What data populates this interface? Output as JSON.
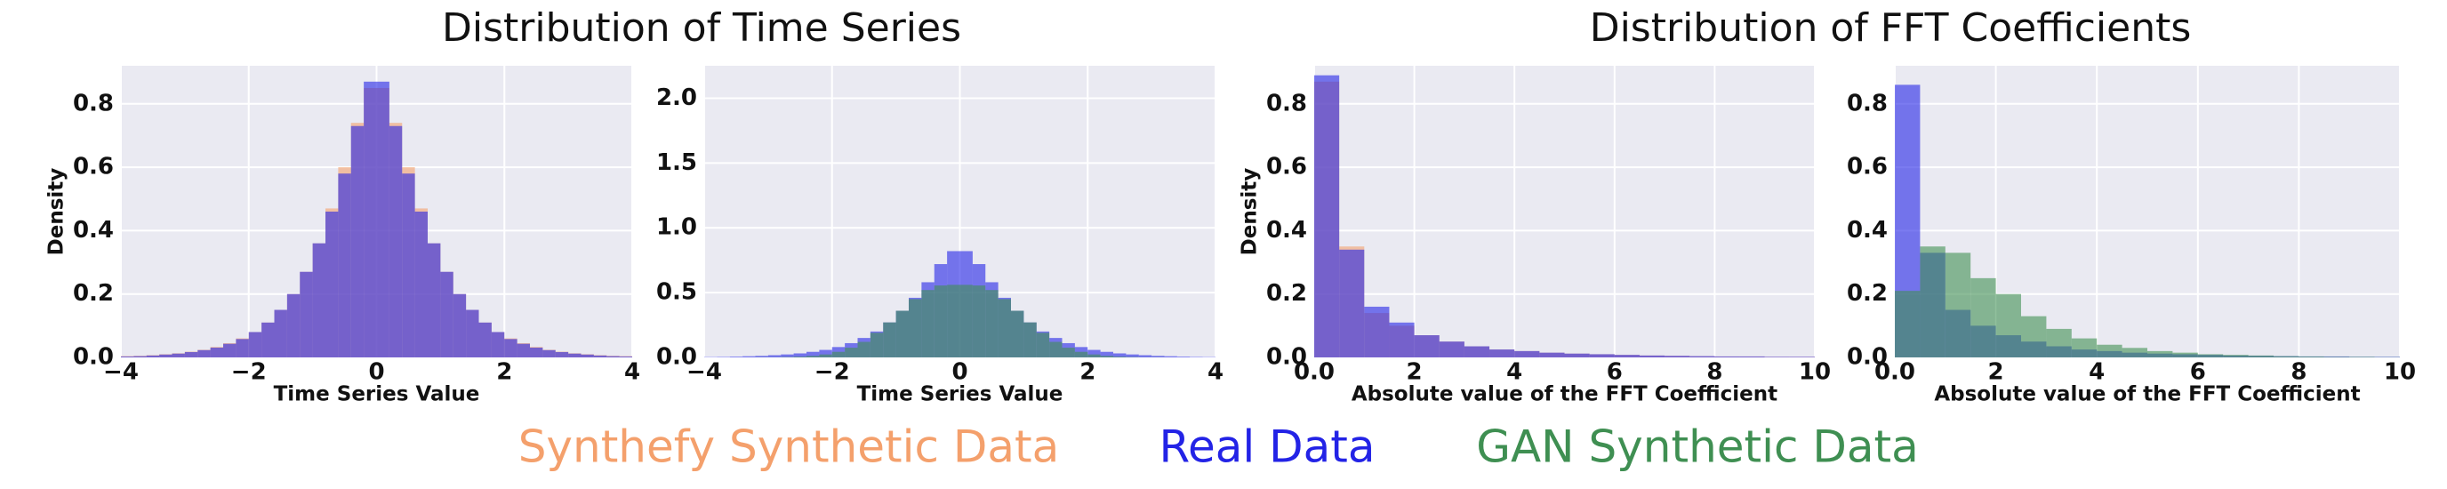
{
  "titles": [
    "Distribution of Time Series",
    "Distribution of FFT Coefficients"
  ],
  "chart_data": [
    {
      "type": "histogram",
      "xlabel": "Time Series Value",
      "ylabel": "Density",
      "grid": true,
      "bins": [
        -4,
        -3.8,
        -3.6,
        -3.4,
        -3.2,
        -3,
        -2.8,
        -2.6,
        -2.4,
        -2.2,
        -2,
        -1.8,
        -1.6,
        -1.4,
        -1.2,
        -1,
        -0.8,
        -0.6,
        -0.4,
        -0.2,
        0,
        0.2,
        0.4,
        0.6,
        0.8,
        1,
        1.2,
        1.4,
        1.6,
        1.8,
        2,
        2.2,
        2.4,
        2.6,
        2.8,
        3,
        3.2,
        3.4,
        3.6,
        3.8,
        4
      ],
      "series": [
        {
          "name": "Synthefy Synthetic Data",
          "color": "#f4a06c",
          "values": [
            0.004,
            0.005,
            0.007,
            0.01,
            0.013,
            0.018,
            0.024,
            0.033,
            0.045,
            0.06,
            0.08,
            0.11,
            0.15,
            0.2,
            0.27,
            0.36,
            0.47,
            0.6,
            0.74,
            0.85,
            0.85,
            0.74,
            0.6,
            0.47,
            0.36,
            0.27,
            0.2,
            0.15,
            0.11,
            0.08,
            0.06,
            0.045,
            0.033,
            0.024,
            0.018,
            0.013,
            0.01,
            0.007,
            0.005,
            0.004
          ]
        },
        {
          "name": "Real Data",
          "color": "#2323e6",
          "values": [
            0.003,
            0.004,
            0.006,
            0.009,
            0.012,
            0.017,
            0.023,
            0.031,
            0.043,
            0.058,
            0.08,
            0.11,
            0.15,
            0.2,
            0.27,
            0.36,
            0.46,
            0.58,
            0.73,
            0.87,
            0.87,
            0.73,
            0.58,
            0.46,
            0.36,
            0.27,
            0.2,
            0.15,
            0.11,
            0.08,
            0.058,
            0.043,
            0.031,
            0.023,
            0.017,
            0.012,
            0.009,
            0.006,
            0.004,
            0.003
          ]
        }
      ],
      "xlim": [
        -4,
        4
      ],
      "xticks": [
        {
          "value": -4,
          "label": "−4"
        },
        {
          "value": -2,
          "label": "−2"
        },
        0,
        2,
        4
      ],
      "ylim": [
        0,
        0.92
      ],
      "yticks": [
        {
          "value": 0,
          "label": "0.0"
        },
        0.2,
        0.4,
        0.6,
        0.8
      ]
    },
    {
      "type": "histogram",
      "xlabel": "Time Series Value",
      "grid": true,
      "bins": [
        -4,
        -3.8,
        -3.6,
        -3.4,
        -3.2,
        -3,
        -2.8,
        -2.6,
        -2.4,
        -2.2,
        -2,
        -1.8,
        -1.6,
        -1.4,
        -1.2,
        -1,
        -0.8,
        -0.6,
        -0.4,
        -0.2,
        0,
        0.2,
        0.4,
        0.6,
        0.8,
        1,
        1.2,
        1.4,
        1.6,
        1.8,
        2,
        2.2,
        2.4,
        2.6,
        2.8,
        3,
        3.2,
        3.4,
        3.6,
        3.8,
        4
      ],
      "series": [
        {
          "color": "#2323e6",
          "values": [
            0.003,
            0.004,
            0.006,
            0.009,
            0.012,
            0.017,
            0.023,
            0.031,
            0.043,
            0.058,
            0.08,
            0.11,
            0.15,
            0.2,
            0.27,
            0.36,
            0.46,
            0.58,
            0.72,
            0.82,
            0.82,
            0.72,
            0.58,
            0.46,
            0.36,
            0.27,
            0.2,
            0.15,
            0.11,
            0.08,
            0.058,
            0.043,
            0.031,
            0.023,
            0.017,
            0.012,
            0.009,
            0.006,
            0.004,
            0.003
          ]
        },
        {
          "name": "GAN Synthetic Data",
          "color": "#3f8f52",
          "values": [
            0,
            0,
            0,
            0,
            0.001,
            0.001,
            0.003,
            0.006,
            0.012,
            0.023,
            0.043,
            0.075,
            0.12,
            0.19,
            0.27,
            0.36,
            0.45,
            0.52,
            0.555,
            0.56,
            0.56,
            0.555,
            0.52,
            0.45,
            0.36,
            0.27,
            0.19,
            0.12,
            0.075,
            0.043,
            0.023,
            0.012,
            0.006,
            0.003,
            0.001,
            0.001,
            0,
            0,
            0,
            0
          ]
        }
      ],
      "xlim": [
        -4,
        4
      ],
      "xticks": [
        {
          "value": -4,
          "label": "−4"
        },
        {
          "value": -2,
          "label": "−2"
        },
        0,
        2,
        4
      ],
      "ylim": [
        0,
        2.25
      ],
      "yticks": [
        {
          "value": 0,
          "label": "0.0"
        },
        0.5,
        {
          "value": 1,
          "label": "1.0"
        },
        1.5,
        {
          "value": 2,
          "label": "2.0"
        }
      ]
    },
    {
      "type": "histogram",
      "xlabel": "Absolute value of the FFT Coefficient",
      "ylabel": "Density",
      "grid": true,
      "bins": [
        0,
        0.5,
        1,
        1.5,
        2,
        2.5,
        3,
        3.5,
        4,
        4.5,
        5,
        5.5,
        6,
        6.5,
        7,
        7.5,
        8,
        8.5,
        9,
        9.5,
        10
      ],
      "series": [
        {
          "color": "#f4a06c",
          "values": [
            0.87,
            0.35,
            0.14,
            0.1,
            0.07,
            0.05,
            0.035,
            0.025,
            0.02,
            0.015,
            0.012,
            0.01,
            0.008,
            0.006,
            0.005,
            0.004,
            0.003,
            0.003,
            0.002,
            0.002
          ]
        },
        {
          "color": "#2323e6",
          "values": [
            0.89,
            0.34,
            0.16,
            0.11,
            0.07,
            0.05,
            0.035,
            0.025,
            0.02,
            0.015,
            0.012,
            0.01,
            0.008,
            0.006,
            0.005,
            0.004,
            0.003,
            0.003,
            0.002,
            0.002
          ]
        }
      ],
      "xlim": [
        0,
        10
      ],
      "xticks": [
        {
          "value": 0,
          "label": "0.0"
        },
        2,
        4,
        6,
        8,
        10
      ],
      "ylim": [
        0,
        0.92
      ],
      "yticks": [
        {
          "value": 0,
          "label": "0.0"
        },
        0.2,
        0.4,
        0.6,
        0.8
      ]
    },
    {
      "type": "histogram",
      "xlabel": "Absolute value of the FFT Coefficient",
      "grid": true,
      "bins": [
        0,
        0.5,
        1,
        1.5,
        2,
        2.5,
        3,
        3.5,
        4,
        4.5,
        5,
        5.5,
        6,
        6.5,
        7,
        7.5,
        8,
        8.5,
        9,
        9.5,
        10
      ],
      "series": [
        {
          "color": "#2323e6",
          "values": [
            0.86,
            0.33,
            0.15,
            0.1,
            0.07,
            0.05,
            0.035,
            0.025,
            0.02,
            0.015,
            0.012,
            0.01,
            0.008,
            0.006,
            0.005,
            0.004,
            0.003,
            0.003,
            0.002,
            0.002
          ]
        },
        {
          "color": "#3f8f52",
          "values": [
            0.21,
            0.35,
            0.33,
            0.25,
            0.2,
            0.13,
            0.09,
            0.06,
            0.04,
            0.03,
            0.02,
            0.015,
            0.01,
            0.008,
            0.006,
            0.004,
            0.003,
            0.002,
            0.002,
            0.001
          ]
        }
      ],
      "xlim": [
        0,
        10
      ],
      "xticks": [
        {
          "value": 0,
          "label": "0.0"
        },
        2,
        4,
        6,
        8,
        10
      ],
      "ylim": [
        0,
        0.92
      ],
      "yticks": [
        {
          "value": 0,
          "label": "0.0"
        },
        0.2,
        0.4,
        0.6,
        0.8
      ]
    }
  ]
}
